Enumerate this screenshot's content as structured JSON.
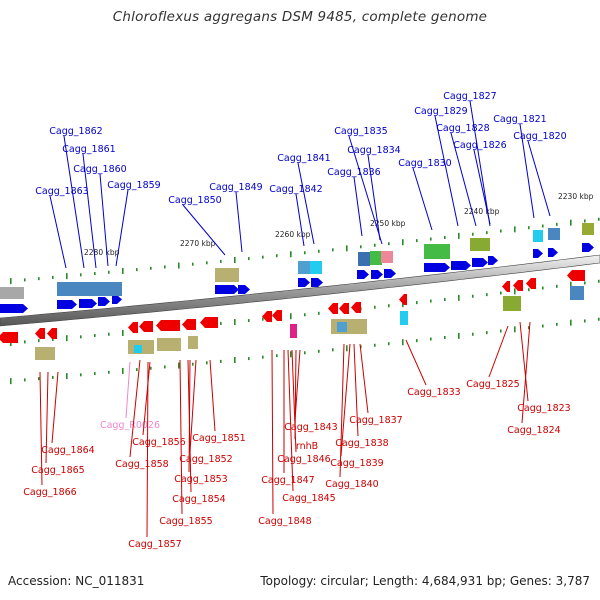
{
  "title": "Chloroflexus aggregans DSM 9485, complete genome",
  "footer": {
    "accession": "Accession: NC_011831",
    "summary": "Topology: circular; Length: 4,684,931 bp; Genes: 3,787"
  },
  "colors": {
    "forward_label": "#0000cc",
    "reverse_label": "#cc0000",
    "rna_label": "#ee88cc",
    "forward_gene": "#0000e0",
    "reverse_gene": "#ee0000",
    "backbone": "#777777"
  },
  "scale_ticks": [
    "2280 kbp",
    "2270 kbp",
    "2260 kbp",
    "2250 kbp",
    "2240 kbp",
    "2230 kbp"
  ],
  "forward_labels": [
    "Cagg_1862",
    "Cagg_1861",
    "Cagg_1860",
    "Cagg_1863",
    "Cagg_1859",
    "Cagg_1849",
    "Cagg_1850",
    "Cagg_1841",
    "Cagg_1842",
    "Cagg_1835",
    "Cagg_1834",
    "Cagg_1836",
    "Cagg_1830",
    "Cagg_1829",
    "Cagg_1827",
    "Cagg_1828",
    "Cagg_1826",
    "Cagg_1821",
    "Cagg_1820"
  ],
  "reverse_labels": [
    "Cagg_1864",
    "Cagg_1865",
    "Cagg_1866",
    "Cagg_R0026",
    "Cagg_1856",
    "Cagg_1858",
    "Cagg_1857",
    "Cagg_1851",
    "Cagg_1852",
    "Cagg_1853",
    "Cagg_1854",
    "Cagg_1855",
    "Cagg_1843",
    "rnhB",
    "Cagg_1846",
    "Cagg_1847",
    "Cagg_1845",
    "Cagg_1848",
    "Cagg_1837",
    "Cagg_1838",
    "Cagg_1839",
    "Cagg_1840",
    "Cagg_1833",
    "Cagg_1825",
    "Cagg_1823",
    "Cagg_1824"
  ]
}
